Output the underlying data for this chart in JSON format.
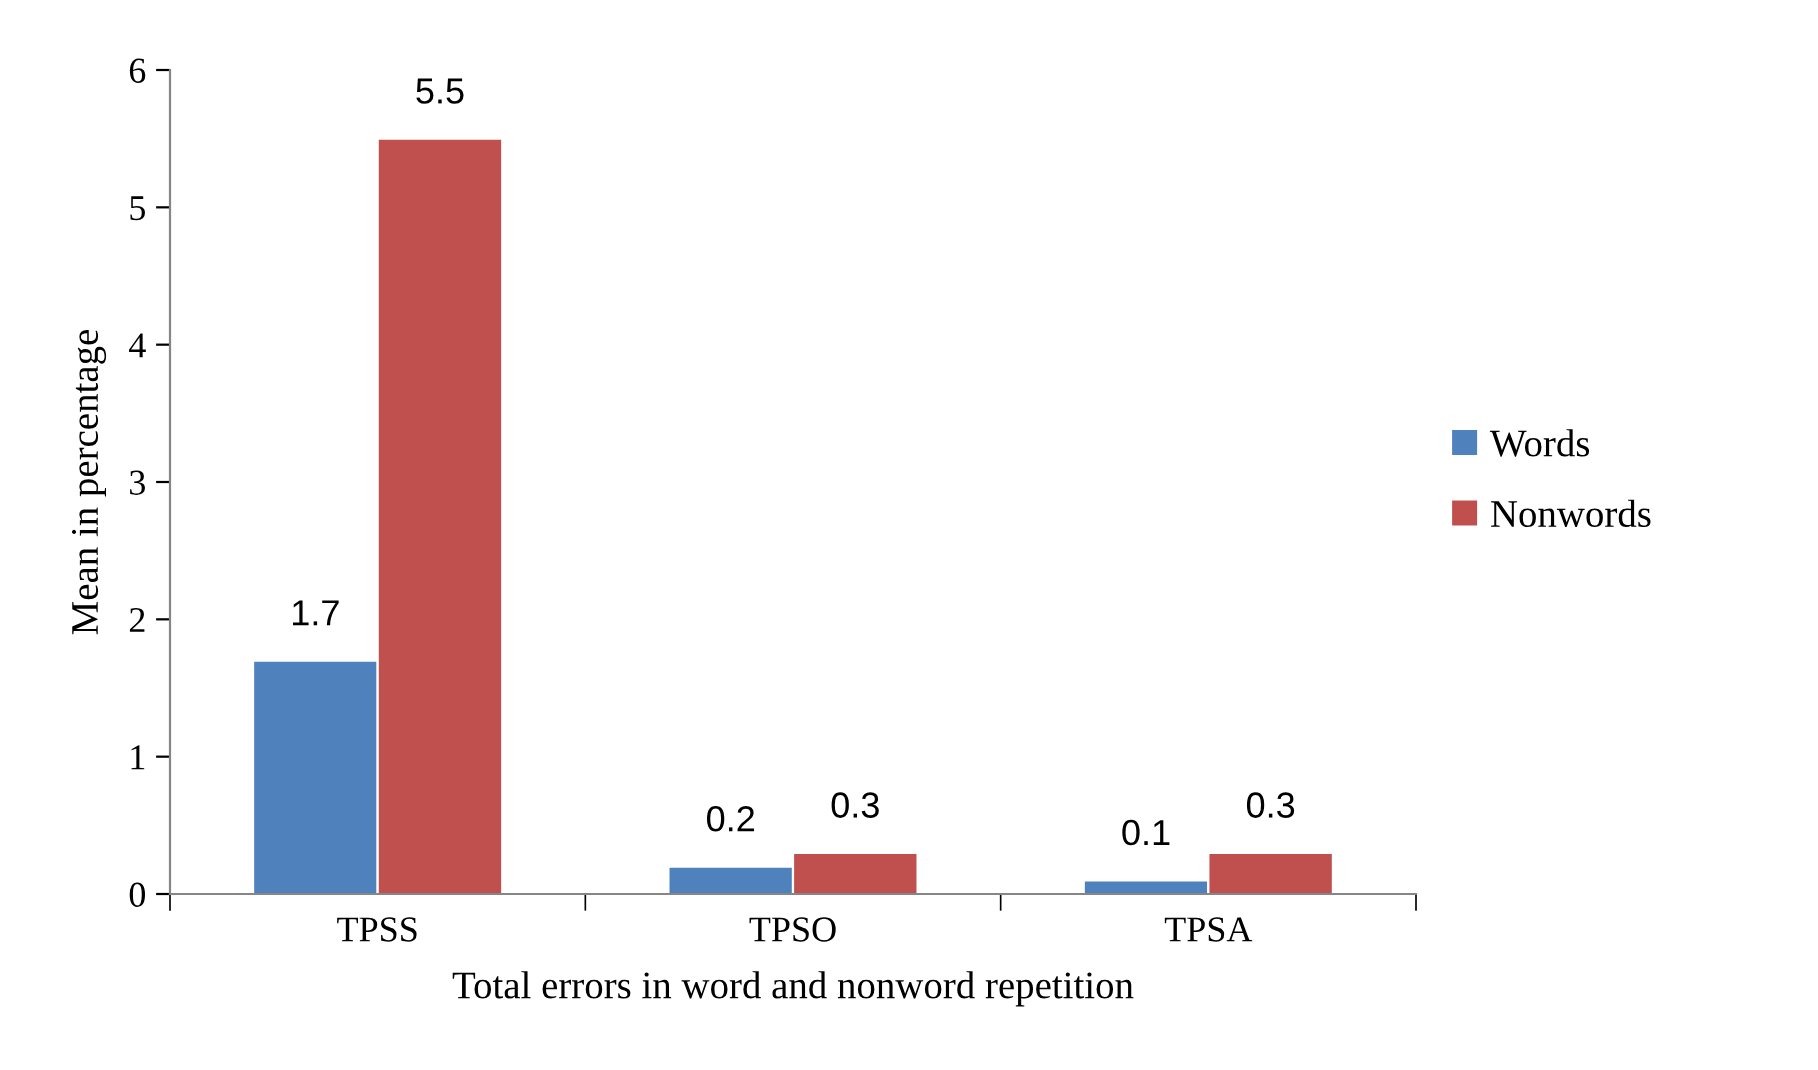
{
  "chart_data": {
    "type": "bar",
    "xlabel": "Total errors in word and nonword repetition",
    "ylabel": "Mean in percentage",
    "categories": [
      "TPSS",
      "TPSO",
      "TPSA"
    ],
    "series": [
      {
        "name": "Words",
        "color": "#4f81bd",
        "values": [
          1.7,
          0.2,
          0.1
        ]
      },
      {
        "name": "Nonwords",
        "color": "#c0504d",
        "values": [
          5.5,
          0.3,
          0.3
        ]
      }
    ],
    "ylim": [
      0,
      6
    ],
    "yticks": [
      0,
      1,
      2,
      3,
      4,
      5,
      6
    ],
    "grid": false,
    "legend": "right",
    "data_labels": true
  }
}
